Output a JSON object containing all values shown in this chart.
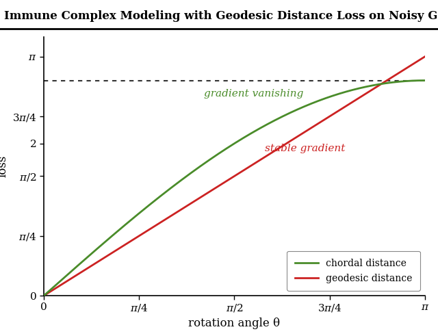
{
  "title": "Immune Complex Modeling with Geodesic Distance Loss on Noisy Group Frames",
  "xlabel": "rotation angle θ",
  "ylabel": "loss",
  "chordal_label": "chordal distance",
  "geodesic_label": "geodesic distance",
  "annotation_vanishing": "gradient vanishing",
  "annotation_stable": "stable gradient",
  "chordal_color": "#4a8c2a",
  "geodesic_color": "#cc2222",
  "dotted_color": "#333333",
  "background_color": "#ffffff",
  "xlim": [
    0,
    3.14159265358979
  ],
  "ylim": [
    0,
    3.4
  ],
  "dotted_y": 2.8284271247461903,
  "figsize": [
    6.4,
    4.91
  ],
  "dpi": 100,
  "title_fontsize": 12,
  "annotation_fontsize": 11,
  "tick_fontsize": 11,
  "label_fontsize": 12
}
